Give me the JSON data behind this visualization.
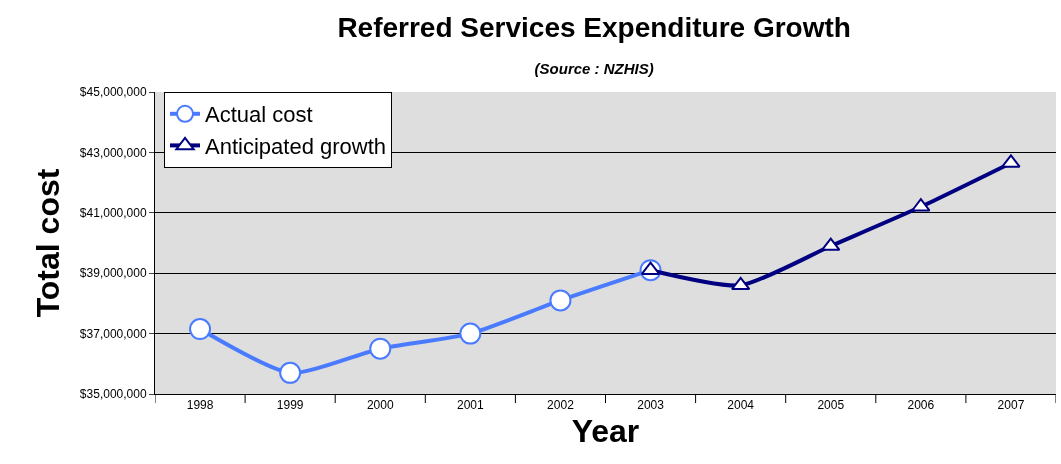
{
  "chart_data": {
    "type": "line",
    "title": "Referred Services Expenditure Growth",
    "subtitle": "(Source : NZHIS)",
    "xlabel": "Year",
    "ylabel": "Total cost",
    "categories": [
      "1998",
      "1999",
      "2000",
      "2001",
      "2002",
      "2003",
      "2004",
      "2005",
      "2006",
      "2007"
    ],
    "series": [
      {
        "name": "Actual cost",
        "color": "#4a7bff",
        "marker": "circle",
        "values": [
          37150000,
          35700000,
          36500000,
          37000000,
          38100000,
          39100000,
          null,
          null,
          null,
          null
        ]
      },
      {
        "name": "Anticipated growth",
        "color": "#000080",
        "marker": "triangle",
        "values": [
          null,
          null,
          null,
          null,
          null,
          39100000,
          38600000,
          39900000,
          41200000,
          42650000
        ]
      }
    ],
    "ylim": [
      35000000,
      45000000
    ],
    "yticks": [
      {
        "value": 35000000,
        "label": "$35,000,000"
      },
      {
        "value": 37000000,
        "label": "$37,000,000"
      },
      {
        "value": 39000000,
        "label": "$39,000,000"
      },
      {
        "value": 41000000,
        "label": "$41,000,000"
      },
      {
        "value": 43000000,
        "label": "$43,000,000"
      },
      {
        "value": 45000000,
        "label": "$45,000,000"
      }
    ],
    "grid": "y",
    "legend": "top left",
    "line_style": "solid"
  }
}
